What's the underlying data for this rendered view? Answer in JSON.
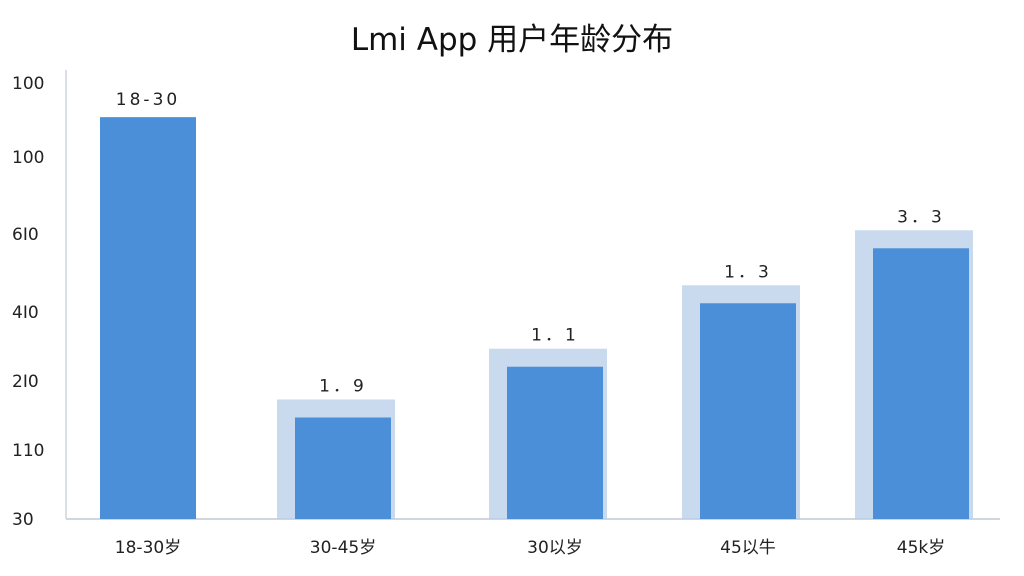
{
  "chart_data": {
    "type": "bar",
    "title": "Lmi App 用户年龄分布",
    "xlabel": "",
    "ylabel": "",
    "y_tick_labels": [
      "30",
      "110",
      "2I0",
      "4I0",
      "6I0",
      "100",
      "100"
    ],
    "categories": [
      "18-30岁",
      "30-45岁",
      "30以岁",
      "45以牛",
      "45k岁"
    ],
    "values": [
      95,
      24,
      36,
      51,
      64
    ],
    "data_labels": [
      "18-30",
      "1．9",
      "1．1",
      "1．3",
      "3．3"
    ],
    "ylim": [
      0,
      100
    ],
    "grid": false,
    "legend": "none",
    "colors": {
      "bar": "#4a8fd8",
      "bar_shadow": "#b8cde8",
      "axis": "#cfd6de"
    }
  }
}
